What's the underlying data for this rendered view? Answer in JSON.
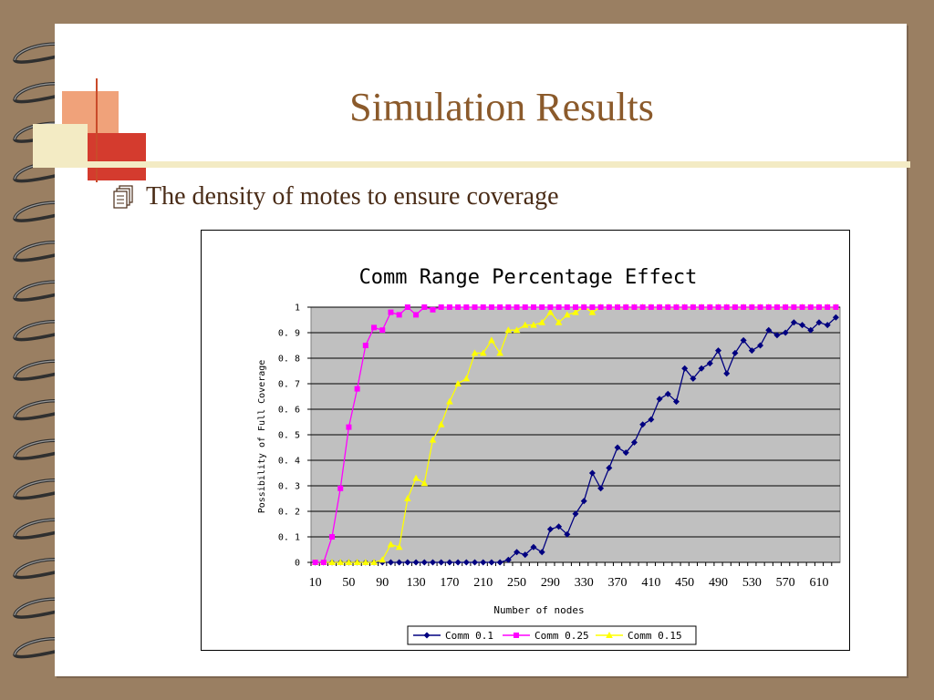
{
  "slide": {
    "title": "Simulation Results",
    "bullet": "The density of motes to ensure coverage",
    "bullet_icon": "document-stack-icon"
  },
  "colors": {
    "background": "#9a7f62",
    "title": "#8b5a2b",
    "plot_area": "#c0c0c0",
    "series_comm01": "#000080",
    "series_comm025": "#ff00ff",
    "series_comm015": "#ffff00"
  },
  "chart_data": {
    "type": "line",
    "title": "Comm Range Percentage Effect",
    "xlabel": "Number of nodes",
    "ylabel": "Possibility of Full Coverage",
    "x": [
      10,
      20,
      30,
      40,
      50,
      60,
      70,
      80,
      90,
      100,
      110,
      120,
      130,
      140,
      150,
      160,
      170,
      180,
      190,
      200,
      210,
      220,
      230,
      240,
      250,
      260,
      270,
      280,
      290,
      300,
      310,
      320,
      330,
      340,
      350,
      360,
      370,
      380,
      390,
      400,
      410,
      420,
      430,
      440,
      450,
      460,
      470,
      480,
      490,
      500,
      510,
      520,
      530,
      540,
      550,
      560,
      570,
      580,
      590,
      600,
      610,
      620,
      630
    ],
    "xticks": [
      "10",
      "50",
      "90",
      "130",
      "170",
      "210",
      "250",
      "290",
      "330",
      "370",
      "410",
      "450",
      "490",
      "530",
      "570",
      "610"
    ],
    "yticks": [
      "0",
      "0.1",
      "0.2",
      "0.3",
      "0.4",
      "0.5",
      "0.6",
      "0.7",
      "0.8",
      "0.9",
      "1"
    ],
    "ylim": [
      0,
      1
    ],
    "grid": true,
    "legend_position": "bottom",
    "series": [
      {
        "name": "Comm 0.1",
        "marker": "diamond",
        "values": [
          0,
          0,
          0,
          0,
          0,
          0,
          0,
          0,
          0,
          0,
          0,
          0,
          0,
          0,
          0,
          0,
          0,
          0,
          0,
          0,
          0,
          0,
          0,
          0.01,
          0.04,
          0.03,
          0.06,
          0.04,
          0.13,
          0.14,
          0.11,
          0.19,
          0.24,
          0.35,
          0.29,
          0.37,
          0.45,
          0.43,
          0.47,
          0.54,
          0.56,
          0.64,
          0.66,
          0.63,
          0.76,
          0.72,
          0.76,
          0.78,
          0.83,
          0.74,
          0.82,
          0.87,
          0.83,
          0.85,
          0.91,
          0.89,
          0.9,
          0.94,
          0.93,
          0.91,
          0.94,
          0.93,
          0.96
        ]
      },
      {
        "name": "Comm 0.25",
        "marker": "square",
        "values": [
          0,
          0,
          0.1,
          0.29,
          0.53,
          0.68,
          0.85,
          0.92,
          0.91,
          0.98,
          0.97,
          1,
          0.97,
          1,
          0.99,
          1,
          1,
          1,
          1,
          1,
          1,
          1,
          1,
          1,
          1,
          1,
          1,
          1,
          1,
          1,
          1,
          1,
          1,
          1,
          1,
          1,
          1,
          1,
          1,
          1,
          1,
          1,
          1,
          1,
          1,
          1,
          1,
          1,
          1,
          1,
          1,
          1,
          1,
          1,
          1,
          1,
          1,
          1,
          1,
          1,
          1,
          1,
          1
        ]
      },
      {
        "name": "Comm 0.15",
        "marker": "triangle",
        "values": [
          0,
          0,
          0,
          0,
          0,
          0,
          0,
          0,
          0.01,
          0.07,
          0.06,
          0.25,
          0.33,
          0.31,
          0.48,
          0.54,
          0.63,
          0.7,
          0.72,
          0.82,
          0.82,
          0.87,
          0.82,
          0.91,
          0.91,
          0.93,
          0.93,
          0.94,
          0.98,
          0.94,
          0.97,
          0.98,
          1,
          0.98,
          1,
          1,
          1,
          1,
          1,
          1,
          1,
          1,
          1,
          1,
          1,
          1,
          1,
          1,
          1,
          1,
          1,
          1,
          1,
          1,
          1,
          1,
          1,
          1,
          1,
          1,
          1,
          1,
          1
        ]
      }
    ]
  }
}
